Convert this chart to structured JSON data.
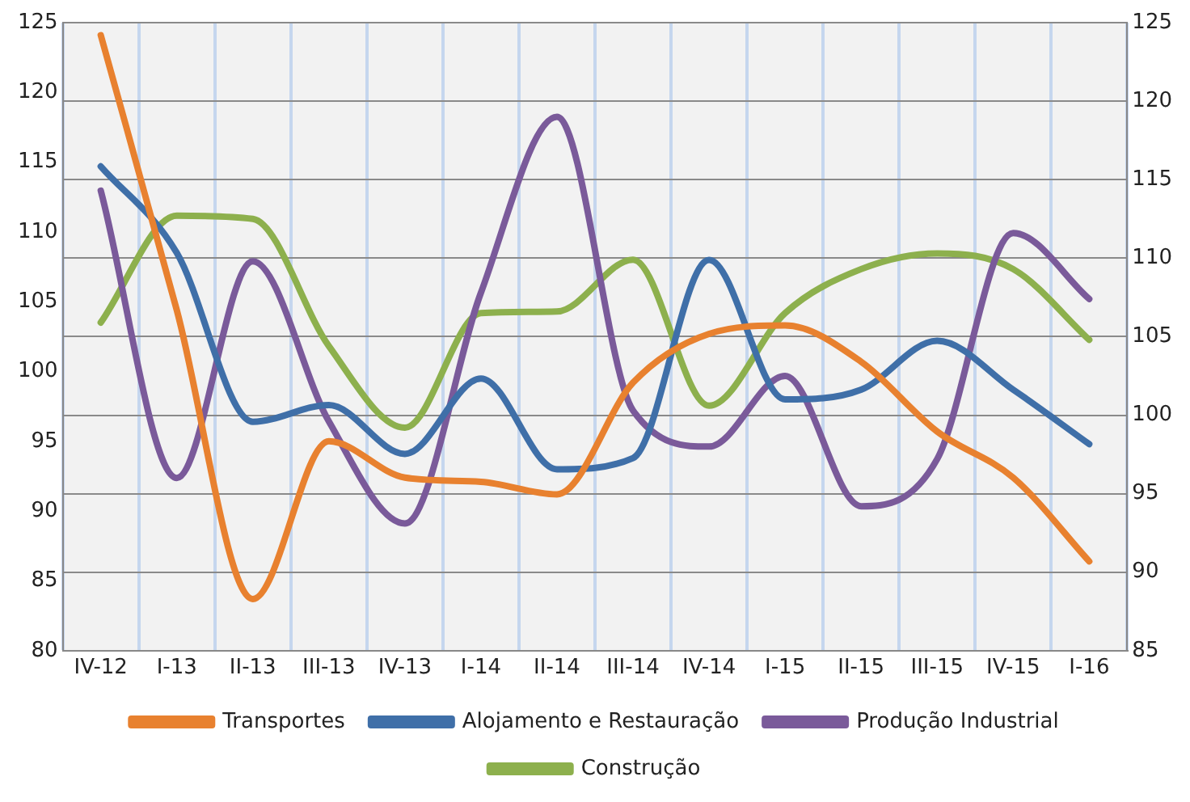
{
  "chart_data": {
    "type": "line",
    "categories": [
      "IV-12",
      "I-13",
      "II-13",
      "III-13",
      "IV-13",
      "I-14",
      "II-14",
      "III-14",
      "IV-14",
      "I-15",
      "II-15",
      "III-15",
      "IV-15",
      "I-16"
    ],
    "series": [
      {
        "name": "Transportes",
        "color": "#e8812f",
        "axis": "y",
        "values": [
          124.1,
          104.4,
          83.7,
          95.0,
          92.4,
          92.1,
          91.2,
          99.2,
          102.7,
          103.3,
          100.7,
          95.7,
          92.4,
          86.4
        ]
      },
      {
        "name": "Alojamento e Restauração",
        "color": "#3f6fa8",
        "axis": "y",
        "values": [
          114.7,
          108.5,
          96.4,
          97.6,
          94.1,
          99.5,
          93.0,
          93.8,
          108.0,
          98.0,
          98.7,
          102.2,
          98.7,
          94.8
        ]
      },
      {
        "name": "Produção Industrial",
        "color": "#7a5a9a",
        "axis": "y2",
        "values": [
          114.3,
          96.0,
          109.8,
          99.6,
          93.1,
          107.8,
          119.0,
          100.3,
          98.0,
          102.5,
          94.2,
          97.2,
          111.6,
          107.4
        ]
      },
      {
        "name": "Construção",
        "color": "#8db04d",
        "axis": "y2",
        "values": [
          105.9,
          112.7,
          112.5,
          104.4,
          99.2,
          106.5,
          106.6,
          109.9,
          100.6,
          106.5,
          109.3,
          110.3,
          109.3,
          104.8
        ]
      }
    ],
    "ylim": [
      80,
      125
    ],
    "yticks": [
      80,
      85,
      90,
      95,
      100,
      105,
      110,
      115,
      120,
      125
    ],
    "y2lim": [
      85,
      125
    ],
    "y2ticks": [
      85,
      90,
      95,
      100,
      105,
      110,
      115,
      120,
      125
    ],
    "grid": true,
    "legend": "bottom",
    "marker": "none",
    "line_style": "solid"
  }
}
